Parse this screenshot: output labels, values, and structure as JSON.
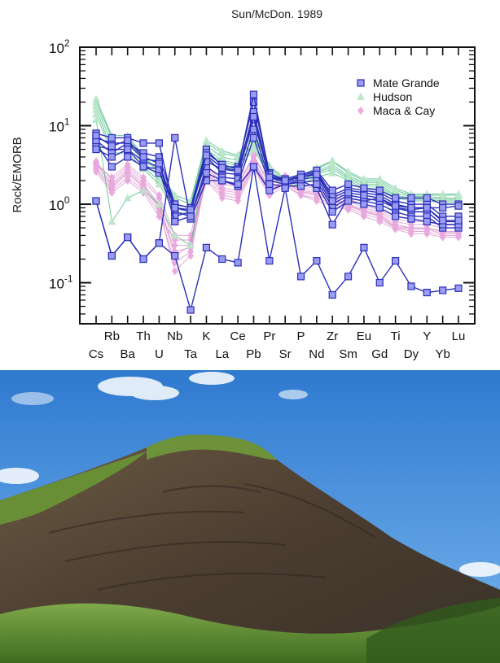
{
  "chart_data": {
    "type": "line",
    "title": "Sun/McDon. 1989",
    "ylabel": "Rock/EMORB",
    "xlabel": "",
    "yscale": "log",
    "ylim": [
      0.03,
      100
    ],
    "y_ticks": [
      {
        "value": 100,
        "base": "10",
        "exp": "2"
      },
      {
        "value": 10,
        "base": "10",
        "exp": "1"
      },
      {
        "value": 1,
        "base": "10",
        "exp": "0"
      },
      {
        "value": 0.1,
        "base": "10",
        "exp": "-1"
      }
    ],
    "categories": [
      "Cs",
      "Rb",
      "Ba",
      "Th",
      "U",
      "Nb",
      "Ta",
      "K",
      "La",
      "Ce",
      "Pb",
      "Pr",
      "Sr",
      "P",
      "Nd",
      "Zr",
      "Sm",
      "Eu",
      "Gd",
      "Ti",
      "Dy",
      "Y",
      "Yb",
      "Lu"
    ],
    "legend_position": "top-right",
    "grid": false,
    "series": [
      {
        "name": "Mate Grande",
        "color": "#2b2fb8",
        "marker_fill": "#9a9cf2",
        "marker": "square",
        "lines": [
          [
            7,
            6,
            6,
            4.5,
            4,
            1,
            0.9,
            5,
            3,
            3,
            20,
            2.5,
            2,
            2.2,
            2.5,
            1.2,
            1.5,
            1.4,
            1.3,
            1,
            0.9,
            0.9,
            0.6,
            0.6
          ],
          [
            5.5,
            5,
            5,
            3.5,
            3,
            0.9,
            0.8,
            4,
            2.5,
            2.4,
            12,
            2.2,
            1.9,
            2.1,
            2.2,
            1,
            1.3,
            1.2,
            1.1,
            0.9,
            0.8,
            0.8,
            0.55,
            0.55
          ],
          [
            8,
            7,
            7,
            6,
            6,
            0.8,
            0.7,
            3,
            2.2,
            2.1,
            9,
            2,
            1.8,
            1.9,
            2,
            0.9,
            1.2,
            1.1,
            1,
            0.8,
            0.7,
            0.7,
            0.5,
            0.5
          ],
          [
            6,
            3,
            4,
            3,
            2.5,
            1,
            0.9,
            3.5,
            2.8,
            2.6,
            15,
            2.3,
            2,
            2.3,
            2.6,
            1.3,
            1.6,
            1.5,
            1.4,
            1.1,
            1,
            1,
            0.7,
            0.7
          ],
          [
            6.5,
            4.5,
            6,
            3.8,
            3.5,
            0.7,
            0.8,
            4.5,
            3.2,
            2.8,
            25,
            2.4,
            2.1,
            2.4,
            2.7,
            1.5,
            1.8,
            1.6,
            1.5,
            1.2,
            1.2,
            1.2,
            1,
            1
          ],
          [
            1.1,
            0.22,
            0.38,
            0.2,
            0.32,
            7,
            0.65,
            2,
            2,
            1.7,
            3,
            1.5,
            1.8,
            2,
            1.6,
            0.55,
            1.2,
            1.1,
            1.2,
            0.9,
            0.85,
            0.9,
            0.9,
            0.95
          ],
          [
            5,
            4,
            5,
            3,
            2.8,
            0.6,
            0.7,
            2.5,
            2,
            1.8,
            7,
            1.8,
            1.7,
            1.7,
            1.8,
            0.8,
            1.1,
            1,
            0.9,
            0.7,
            0.65,
            0.6,
            0.55,
            0.55
          ],
          [
            7.5,
            5.5,
            6.5,
            4,
            3.3,
            0.9,
            0.85,
            4.2,
            2.9,
            2.7,
            13,
            2.2,
            2,
            2.2,
            2.4,
            1.1,
            1.4,
            1.3,
            1.2,
            0.95,
            0.9,
            0.9,
            0.62,
            0.62
          ]
        ]
      },
      {
        "name": "Mate Grande (low)",
        "color": "#2b2fb8",
        "marker_fill": "#9a9cf2",
        "marker": "square",
        "lines": [
          [
            1.1,
            0.22,
            0.38,
            0.2,
            0.32,
            0.22,
            0.045,
            0.28,
            0.2,
            0.18,
            3,
            0.19,
            1.6,
            0.12,
            0.19,
            0.07,
            0.12,
            0.28,
            0.1,
            0.19,
            0.09,
            0.075,
            0.08,
            0.085
          ]
        ]
      },
      {
        "name": "Hudson",
        "color": "#3db87a",
        "marker_fill": "#b9e6c8",
        "marker": "triangle",
        "lines": [
          [
            20,
            7,
            7,
            4,
            2.5,
            1.2,
            1,
            6,
            4.5,
            4,
            8,
            3,
            2,
            2.2,
            2.8,
            3.5,
            2.5,
            2,
            2,
            1.5,
            1.3,
            1.3,
            1.3,
            1.3
          ],
          [
            18,
            6,
            6,
            3.5,
            2.2,
            1,
            0.9,
            5.5,
            4,
            3.6,
            7,
            2.8,
            1.9,
            2.1,
            2.6,
            3.2,
            2.3,
            1.9,
            1.9,
            1.4,
            1.25,
            1.25,
            1.2,
            1.2
          ],
          [
            16,
            5,
            5,
            3,
            2,
            0.9,
            0.8,
            5,
            3.6,
            3.3,
            6,
            2.6,
            1.8,
            2,
            2.5,
            3,
            2.2,
            1.8,
            1.8,
            1.3,
            1.2,
            1.2,
            1.15,
            1.15
          ],
          [
            14,
            4.5,
            4.5,
            2.8,
            1.8,
            0.8,
            0.75,
            4.6,
            3.4,
            3.1,
            5.5,
            2.5,
            1.8,
            1.9,
            2.4,
            2.8,
            2.1,
            1.7,
            1.7,
            1.25,
            1.15,
            1.15,
            1.1,
            1.1
          ],
          [
            12,
            0.6,
            1.2,
            1.5,
            1,
            0.4,
            0.3,
            4,
            3,
            2.8,
            5,
            2.3,
            1.7,
            1.8,
            2.2,
            2.5,
            2,
            1.6,
            1.6,
            1.2,
            1.1,
            1.1,
            1.05,
            1.05
          ],
          [
            22,
            7.5,
            7.5,
            4.2,
            2.6,
            1.3,
            1.1,
            6.5,
            4.8,
            4.2,
            8.5,
            3.1,
            2.1,
            2.3,
            2.9,
            3.6,
            2.6,
            2.1,
            2.1,
            1.6,
            1.35,
            1.35,
            1.35,
            1.35
          ]
        ]
      },
      {
        "name": "Maca & Cay",
        "color": "#d98bc9",
        "marker_fill": "#e9a8dd",
        "marker": "diamond",
        "lines": [
          [
            3.5,
            2,
            3,
            2,
            1.2,
            0.3,
            0.3,
            3,
            1.8,
            1.7,
            4,
            1.8,
            2.2,
            1.6,
            1.5,
            1.3,
            1.1,
            0.9,
            0.8,
            0.6,
            0.55,
            0.55,
            0.5,
            0.5
          ],
          [
            3.3,
            1.8,
            2.8,
            1.8,
            1,
            0.25,
            0.28,
            2.8,
            1.6,
            1.5,
            3.6,
            1.6,
            2,
            1.5,
            1.4,
            1.2,
            1,
            0.85,
            0.75,
            0.55,
            0.5,
            0.5,
            0.45,
            0.45
          ],
          [
            3,
            1.6,
            2.5,
            1.6,
            0.9,
            0.14,
            0.22,
            2.5,
            1.4,
            1.3,
            3.2,
            1.5,
            1.9,
            1.4,
            1.3,
            1.1,
            0.95,
            0.8,
            0.7,
            0.5,
            0.48,
            0.48,
            0.42,
            0.42
          ],
          [
            2.8,
            1.5,
            2.2,
            1.5,
            0.8,
            0.18,
            0.25,
            2.2,
            1.3,
            1.2,
            3,
            1.4,
            1.8,
            1.3,
            1.2,
            1,
            0.9,
            0.75,
            0.65,
            0.5,
            0.45,
            0.45,
            0.4,
            0.4
          ],
          [
            2.6,
            1.4,
            2,
            1.4,
            0.7,
            0.35,
            0.35,
            2,
            1.2,
            1.1,
            2.8,
            1.3,
            1.7,
            1.3,
            1.1,
            0.95,
            0.85,
            0.7,
            0.6,
            0.48,
            0.42,
            0.42,
            0.38,
            0.38
          ],
          [
            3.2,
            2.2,
            3.2,
            2.2,
            1.3,
            0.4,
            0.4,
            3.2,
            1.9,
            1.8,
            4.2,
            1.9,
            2.3,
            1.7,
            1.6,
            1.4,
            1.2,
            0.95,
            0.85,
            0.65,
            0.6,
            0.6,
            0.55,
            0.55
          ],
          [
            3.4,
            1.7,
            2.6,
            1.7,
            0.95,
            0.22,
            0.3,
            2.6,
            1.5,
            1.4,
            3.4,
            1.55,
            1.95,
            1.45,
            1.35,
            1.15,
            0.98,
            0.82,
            0.72,
            0.52,
            0.5,
            0.5,
            0.44,
            0.44
          ]
        ]
      }
    ],
    "legend": [
      {
        "label": "Mate Grande",
        "marker": "square",
        "color": "#2b2fb8",
        "fill": "#9a9cf2"
      },
      {
        "label": "Hudson",
        "marker": "triangle",
        "color": "#3db87a",
        "fill": "#b9e6c8"
      },
      {
        "label": "Maca & Cay",
        "marker": "diamond",
        "color": "#d98bc9",
        "fill": "#e9a8dd"
      }
    ]
  },
  "photo": {
    "subject": "mountain landscape",
    "colors": {
      "sky_top": "#2f79cf",
      "sky_bottom": "#72b1ec",
      "rock": "#5a4a3a",
      "grass": "#5f8a2c",
      "slope_light": "#7a9c44"
    }
  }
}
